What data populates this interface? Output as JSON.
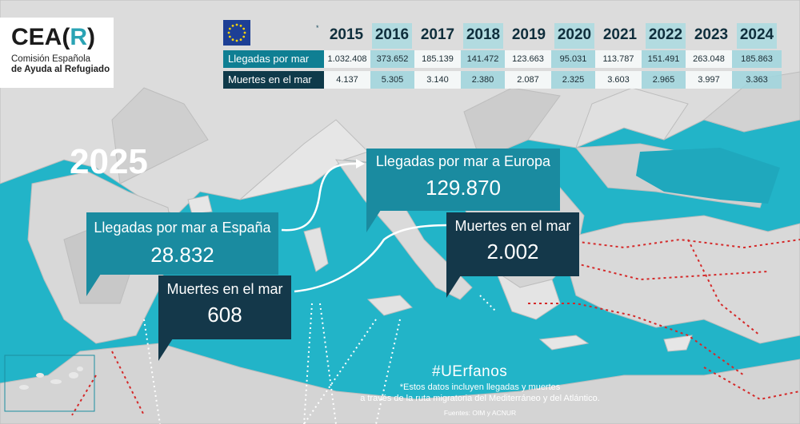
{
  "logo": {
    "name_left": "CEA",
    "name_r": "R",
    "bracket_open": "(",
    "bracket_close": ")",
    "subtitle_line1": "Comisión Española",
    "subtitle_line2": "de Ayuda al Refugiado"
  },
  "table": {
    "star": "*",
    "years": [
      "2015",
      "2016",
      "2017",
      "2018",
      "2019",
      "2020",
      "2021",
      "2022",
      "2023",
      "2024"
    ],
    "rows": [
      {
        "label": "Llegadas por mar",
        "values": [
          "1.032.408",
          "373.652",
          "185.139",
          "141.472",
          "123.663",
          "95.031",
          "113.787",
          "151.491",
          "263.048",
          "185.863"
        ]
      },
      {
        "label": "Muertes en el mar",
        "values": [
          "4.137",
          "5.305",
          "3.140",
          "2.380",
          "2.087",
          "2.325",
          "3.603",
          "2.965",
          "3.997",
          "3.363"
        ]
      }
    ]
  },
  "highlight_year": "2025",
  "callouts": {
    "spain_arrivals": {
      "title": "Llegadas por mar a España",
      "value": "28.832"
    },
    "spain_deaths": {
      "title": "Muertes en el mar",
      "value": "608"
    },
    "europe_arrivals": {
      "title": "Llegadas por mar a Europa",
      "value": "129.870"
    },
    "europe_deaths": {
      "title": "Muertes en el mar",
      "value": "2.002"
    }
  },
  "hashtag": "#UErfanos",
  "footnote_line1": "*Estos datos incluyen llegadas y muertes",
  "footnote_line2": "a través de la ruta migratoria del Mediterráneo y del Atlántico.",
  "sources": "Fuentes: OIM y ACNUR",
  "colors": {
    "sea": "#21b5c9",
    "land": "#d9d9d9",
    "teal_box": "#1a8ba0",
    "dark_box": "#14384a",
    "route": "#d42a2a"
  }
}
